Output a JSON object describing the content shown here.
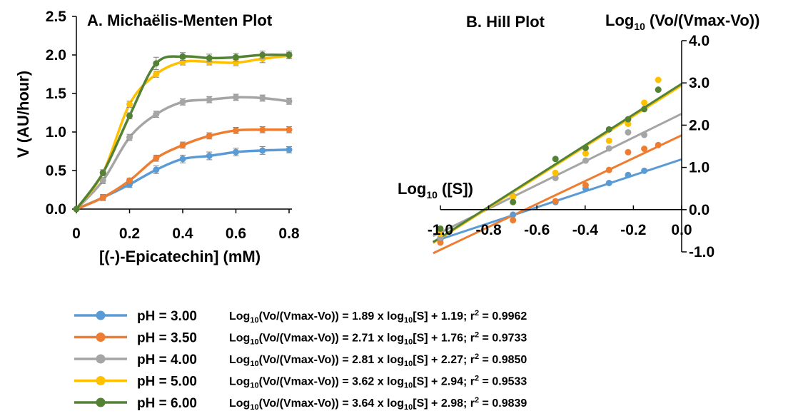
{
  "colors": {
    "pH 3.00": "#5b9bd5",
    "pH 3.50": "#ed7d31",
    "pH 4.00": "#a5a5a5",
    "pH 5.00": "#ffc000",
    "pH 6.00": "#548235"
  },
  "legend": [
    {
      "ph": "pH = 3.00",
      "eq_prefix": "Log",
      "eq_mid": "(Vo/(Vmax-Vo)) = 1.89 x log",
      "eq_s": "[S] + 1.19; r",
      "eq_r": " = 0.9962"
    },
    {
      "ph": "pH = 3.50",
      "eq_prefix": "Log",
      "eq_mid": "(Vo/(Vmax-Vo)) = 2.71 x log",
      "eq_s": "[S] + 1.76; r",
      "eq_r": " = 0.9733"
    },
    {
      "ph": "pH = 4.00",
      "eq_prefix": "Log",
      "eq_mid": "(Vo/(Vmax-Vo)) = 2.81 x log",
      "eq_s": "[S] + 2.27; r",
      "eq_r": " = 0.9850"
    },
    {
      "ph": "pH = 5.00",
      "eq_prefix": "Log",
      "eq_mid": "(Vo/(Vmax-Vo)) = 3.62 x log",
      "eq_s": "[S] + 2.94; r",
      "eq_r": " = 0.9533"
    },
    {
      "ph": "pH = 6.00",
      "eq_prefix": "Log",
      "eq_mid": "(Vo/(Vmax-Vo)) = 3.64 x log",
      "eq_s": "[S] + 2.98; r",
      "eq_r": " = 0.9839"
    }
  ],
  "subscript_10": "10",
  "superscript_2": "2",
  "chart_data": [
    {
      "type": "line",
      "title": "A. Michaëlis-Menten Plot",
      "xlabel": "[(-)-Epicatechin] (mM)",
      "ylabel": "V (AU/hour)",
      "xlim": [
        0,
        0.8
      ],
      "ylim": [
        0,
        2.5
      ],
      "x_ticks": [
        "0",
        "0.2",
        "0.4",
        "0.6",
        "0.8"
      ],
      "y_ticks": [
        "0.0",
        "0.5",
        "1.0",
        "1.5",
        "2.0",
        "2.5"
      ],
      "grid": false,
      "x": [
        0,
        0.1,
        0.2,
        0.3,
        0.4,
        0.5,
        0.6,
        0.7,
        0.8
      ],
      "series": [
        {
          "name": "pH = 3.00",
          "values": [
            0,
            0.15,
            0.32,
            0.51,
            0.65,
            0.69,
            0.74,
            0.76,
            0.77
          ],
          "errors": [
            0,
            0.04,
            0.04,
            0.05,
            0.05,
            0.05,
            0.05,
            0.05,
            0.04
          ]
        },
        {
          "name": "pH = 3.50",
          "values": [
            0,
            0.15,
            0.37,
            0.66,
            0.83,
            0.95,
            1.02,
            1.03,
            1.03
          ],
          "errors": [
            0,
            0.03,
            0.03,
            0.04,
            0.04,
            0.04,
            0.04,
            0.04,
            0.04
          ]
        },
        {
          "name": "pH = 4.00",
          "values": [
            0,
            0.37,
            0.93,
            1.23,
            1.39,
            1.42,
            1.45,
            1.44,
            1.4
          ],
          "errors": [
            0,
            0.04,
            0.04,
            0.04,
            0.04,
            0.04,
            0.04,
            0.04,
            0.04
          ]
        },
        {
          "name": "pH = 5.00",
          "values": [
            0,
            0.47,
            1.36,
            1.75,
            1.91,
            1.91,
            1.9,
            1.95,
            1.99
          ],
          "errors": [
            0,
            0.04,
            0.04,
            0.04,
            0.04,
            0.04,
            0.04,
            0.05,
            0.04
          ]
        },
        {
          "name": "pH = 6.00",
          "values": [
            0,
            0.47,
            1.21,
            1.89,
            1.98,
            1.96,
            1.97,
            2.0,
            2.0
          ],
          "errors": [
            0,
            0.04,
            0.04,
            0.08,
            0.05,
            0.05,
            0.05,
            0.05,
            0.05
          ]
        }
      ]
    },
    {
      "type": "scatter",
      "title": "B. Hill Plot",
      "xlabel_prefix": "Log",
      "xlabel_suffix": " ([S])",
      "ylabel_prefix": "Log",
      "ylabel_suffix": " (Vo/(Vmax-Vo))",
      "xlim": [
        -1.0,
        0.0
      ],
      "ylim": [
        -1.0,
        4.0
      ],
      "x_ticks": [
        "-1.0",
        "-0.8",
        "-0.6",
        "-0.4",
        "-0.2",
        "0.0"
      ],
      "y_ticks": [
        "-1.0",
        "0.0",
        "1.0",
        "2.0",
        "3.0",
        "4.0"
      ],
      "grid": false,
      "x": [
        -1.0,
        -0.699,
        -0.523,
        -0.398,
        -0.301,
        -0.222,
        -0.155,
        -0.097
      ],
      "series": [
        {
          "name": "pH = 3.00",
          "values": [
            -0.7,
            -0.12,
            0.18,
            0.5,
            0.63,
            0.82,
            0.92
          ],
          "x_index": [
            0,
            1,
            2,
            3,
            4,
            5,
            6
          ],
          "slope": 1.89,
          "intercept": 1.19
        },
        {
          "name": "pH = 3.50",
          "values": [
            -0.78,
            -0.25,
            0.2,
            0.58,
            0.94,
            1.36,
            1.44,
            1.53
          ],
          "slope": 2.71,
          "intercept": 1.76
        },
        {
          "name": "pH = 4.00",
          "values": [
            -0.66,
            0.32,
            0.75,
            1.16,
            1.45,
            1.83,
            1.77
          ],
          "x_index": [
            0,
            1,
            2,
            3,
            4,
            5,
            6
          ],
          "slope": 2.81,
          "intercept": 2.27
        },
        {
          "name": "pH = 5.00",
          "values": [
            -0.57,
            0.3,
            0.87,
            1.33,
            1.63,
            2.03,
            2.53,
            3.07
          ],
          "slope": 3.62,
          "intercept": 2.94
        },
        {
          "name": "pH = 6.00",
          "values": [
            -0.45,
            0.18,
            1.2,
            1.46,
            1.9,
            2.14,
            2.38,
            2.84
          ],
          "slope": 3.64,
          "intercept": 2.98
        }
      ]
    }
  ]
}
